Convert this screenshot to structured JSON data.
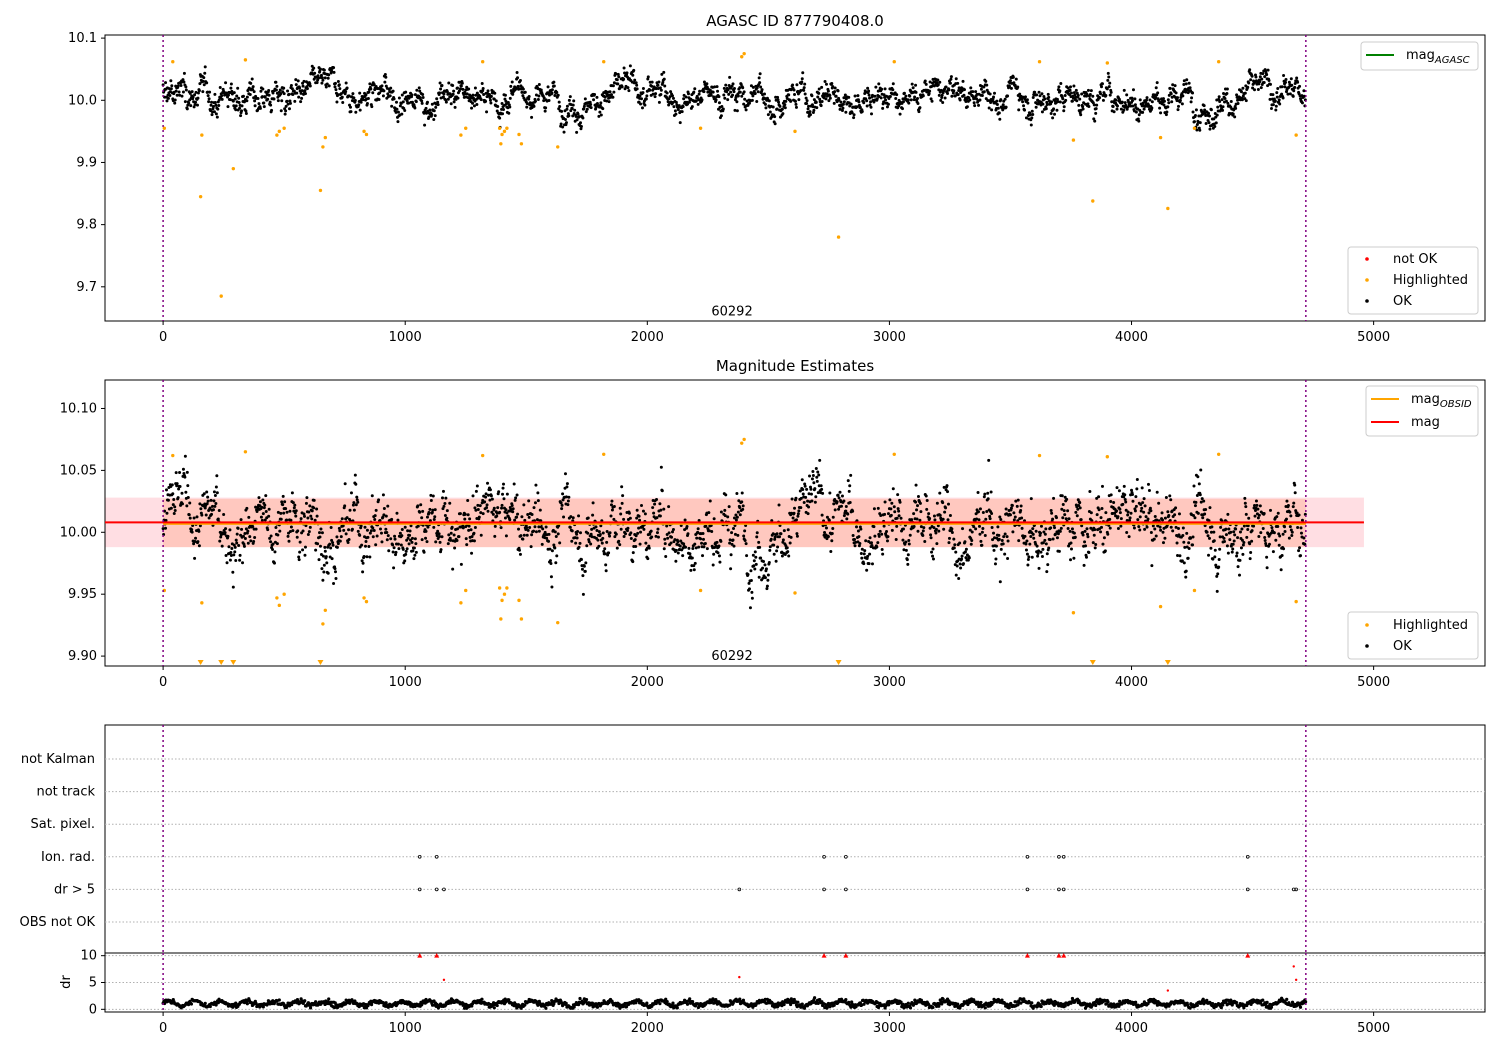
{
  "figure": {
    "panel1_title": "AGASC ID 877790408.0",
    "panel2_title": "Magnitude Estimates",
    "obsid_label": "60292"
  },
  "colors": {
    "ok": "#000000",
    "highlighted": "#ffa500",
    "not_ok": "#ff0000",
    "mag_agasc": "#008000",
    "mag": "#ff0000",
    "mag_obsid": "#ffa500",
    "obsid_band": "#ffa07a",
    "mag_band": "#ffb6c1",
    "boundary": "#800080",
    "grid": "#b0b0b0"
  },
  "chart_data": [
    {
      "type": "scatter",
      "title": "AGASC ID 877790408.0",
      "xlim": [
        -240,
        5460
      ],
      "ylim": [
        9.645,
        10.105
      ],
      "xticks": [
        0,
        1000,
        2000,
        3000,
        4000,
        5000
      ],
      "yticks": [
        "9.7",
        "9.8",
        "9.9",
        "10.0",
        "10.1"
      ],
      "annotation": {
        "text": "60292",
        "x": 2350,
        "y": 9.66
      },
      "obsid_boundaries": [
        0,
        4720
      ],
      "legend_lines": [
        {
          "label": "mag",
          "subscript": "AGASC",
          "color": "#008000"
        }
      ],
      "legend_markers": [
        {
          "label": "not OK",
          "color": "#ff0000"
        },
        {
          "label": "Highlighted",
          "color": "#ffa500"
        },
        {
          "label": "OK",
          "color": "#000000"
        }
      ],
      "series": {
        "ok": {
          "n_points": 4720,
          "x_range": [
            0,
            4720
          ],
          "center": 10.008,
          "spread": 0.02
        },
        "highlighted": [
          [
            5,
            9.955
          ],
          [
            40,
            10.062
          ],
          [
            160,
            9.944
          ],
          [
            155,
            9.845
          ],
          [
            240,
            9.685
          ],
          [
            290,
            9.89
          ],
          [
            340,
            10.065
          ],
          [
            470,
            9.944
          ],
          [
            480,
            9.95
          ],
          [
            500,
            9.955
          ],
          [
            650,
            9.855
          ],
          [
            660,
            9.925
          ],
          [
            670,
            9.94
          ],
          [
            830,
            9.95
          ],
          [
            840,
            9.945
          ],
          [
            1230,
            9.944
          ],
          [
            1250,
            9.955
          ],
          [
            1320,
            10.062
          ],
          [
            1390,
            9.955
          ],
          [
            1395,
            9.93
          ],
          [
            1400,
            9.945
          ],
          [
            1410,
            9.95
          ],
          [
            1420,
            9.955
          ],
          [
            1470,
            9.945
          ],
          [
            1480,
            9.93
          ],
          [
            1630,
            9.925
          ],
          [
            1820,
            10.062
          ],
          [
            2220,
            9.955
          ],
          [
            2390,
            10.07
          ],
          [
            2400,
            10.075
          ],
          [
            2610,
            9.95
          ],
          [
            2790,
            9.78
          ],
          [
            3020,
            10.062
          ],
          [
            3620,
            10.062
          ],
          [
            3760,
            9.936
          ],
          [
            3840,
            9.838
          ],
          [
            3900,
            10.06
          ],
          [
            4120,
            9.94
          ],
          [
            4150,
            9.826
          ],
          [
            4260,
            9.955
          ],
          [
            4360,
            10.062
          ],
          [
            4680,
            9.944
          ]
        ]
      }
    },
    {
      "type": "scatter",
      "title": "Magnitude Estimates",
      "xlim": [
        -240,
        5460
      ],
      "ylim": [
        9.892,
        10.123
      ],
      "xticks": [
        0,
        1000,
        2000,
        3000,
        4000,
        5000
      ],
      "yticks": [
        "9.90",
        "9.95",
        "10.00",
        "10.05",
        "10.10"
      ],
      "annotation": {
        "text": "60292",
        "x": 2350,
        "y": 9.9
      },
      "obsid_boundaries": [
        0,
        4720
      ],
      "mag": {
        "value": 10.008,
        "band": [
          9.988,
          10.028
        ],
        "x_range": [
          -240,
          4960
        ]
      },
      "mag_obsid": {
        "value": 10.007,
        "band": [
          9.988,
          10.027
        ],
        "x_range": [
          0,
          4720
        ]
      },
      "legend_lines": [
        {
          "label": "mag",
          "subscript": "OBSID",
          "color": "#ffa500"
        },
        {
          "label": "mag",
          "subscript": "",
          "color": "#ff0000"
        }
      ],
      "legend_markers": [
        {
          "label": "Highlighted",
          "color": "#ffa500"
        },
        {
          "label": "OK",
          "color": "#000000"
        }
      ],
      "series": {
        "ok": {
          "n_points": 4720,
          "x_range": [
            0,
            4720
          ],
          "center": 10.008,
          "spread": 0.022
        },
        "highlighted": [
          [
            5,
            9.953
          ],
          [
            40,
            10.062
          ],
          [
            160,
            9.943
          ],
          [
            340,
            10.065
          ],
          [
            470,
            9.947
          ],
          [
            480,
            9.941
          ],
          [
            500,
            9.95
          ],
          [
            660,
            9.926
          ],
          [
            670,
            9.937
          ],
          [
            830,
            9.947
          ],
          [
            840,
            9.944
          ],
          [
            1230,
            9.943
          ],
          [
            1250,
            9.953
          ],
          [
            1320,
            10.062
          ],
          [
            1390,
            9.955
          ],
          [
            1395,
            9.93
          ],
          [
            1400,
            9.945
          ],
          [
            1410,
            9.95
          ],
          [
            1420,
            9.955
          ],
          [
            1470,
            9.945
          ],
          [
            1480,
            9.93
          ],
          [
            1630,
            9.927
          ],
          [
            1820,
            10.063
          ],
          [
            2220,
            9.953
          ],
          [
            2390,
            10.072
          ],
          [
            2400,
            10.075
          ],
          [
            2610,
            9.951
          ],
          [
            3020,
            10.063
          ],
          [
            3620,
            10.062
          ],
          [
            3760,
            9.935
          ],
          [
            3900,
            10.061
          ],
          [
            4120,
            9.94
          ],
          [
            4260,
            9.953
          ],
          [
            4360,
            10.063
          ],
          [
            4680,
            9.944
          ]
        ],
        "below_range_markers_x": [
          155,
          240,
          290,
          650,
          2790,
          3840,
          4150
        ]
      }
    },
    {
      "type": "scatter",
      "title": "",
      "xlim": [
        -240,
        5460
      ],
      "xticks": [
        0,
        1000,
        2000,
        3000,
        4000,
        5000
      ],
      "flag_rows": [
        "not Kalman",
        "not track",
        "Sat. pixel.",
        "Ion. rad.",
        "dr > 5",
        "OBS not OK"
      ],
      "flags": {
        "Ion. rad.": [
          1060,
          1130,
          2730,
          2820,
          3570,
          3700,
          3720,
          4480
        ],
        "dr > 5": [
          1060,
          1130,
          1160,
          2380,
          2730,
          2820,
          3570,
          3700,
          3720,
          4480,
          4670,
          4680
        ]
      },
      "obsid_boundaries": [
        0,
        4720
      ]
    },
    {
      "type": "scatter",
      "ylabel": "dr",
      "xlim": [
        -240,
        5460
      ],
      "ylim": [
        -0.5,
        10.5
      ],
      "xticks": [
        0,
        1000,
        2000,
        3000,
        4000,
        5000
      ],
      "yticks": [
        "0",
        "5",
        "10"
      ],
      "obsid_boundaries": [
        0,
        4720
      ],
      "series": {
        "dr_ok": {
          "n_points": 4720,
          "x_range": [
            0,
            4720
          ],
          "typical": [
            0.5,
            2.0
          ]
        },
        "dr_clipped_at_10": [
          1060,
          1130,
          2730,
          2820,
          3570,
          3700,
          3720,
          4480
        ],
        "dr_high": [
          [
            1160,
            5.5
          ],
          [
            2380,
            6.0
          ],
          [
            4150,
            3.5
          ],
          [
            4670,
            8.0
          ],
          [
            4680,
            5.5
          ]
        ]
      }
    }
  ]
}
